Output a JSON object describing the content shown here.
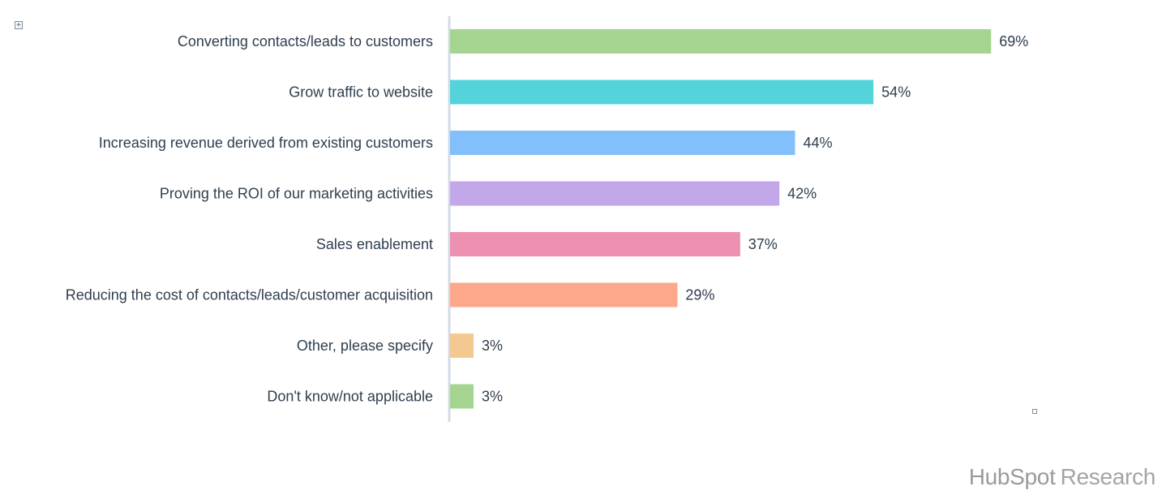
{
  "chart_data": {
    "type": "bar",
    "orientation": "horizontal",
    "categories": [
      "Converting  contacts/leads  to  customers",
      "Grow  traffic to  website",
      "Increasing  revenue  derived  from  existing  customers",
      "Proving  the  ROI  of our marketing  activities",
      "Sales  enablement",
      "Reducing  the  cost of contacts/leads/customer acquisition",
      "Other,  please  specify",
      "Don't  know/not  applicable"
    ],
    "values": [
      69,
      54,
      44,
      42,
      37,
      29,
      3,
      3
    ],
    "value_labels": [
      "69%",
      "54%",
      "44%",
      "42%",
      "37%",
      "29%",
      "3%",
      "3%"
    ],
    "colors": [
      "#a4d490",
      "#54d3db",
      "#81c0fa",
      "#c2a8e8",
      "#ed90b1",
      "#fda78b",
      "#f4c891",
      "#a4d490"
    ],
    "xlim": [
      0,
      100
    ],
    "unit": "%",
    "grid": false,
    "legend": "none"
  },
  "brand": {
    "name": "HubSpot",
    "suffix": "Research"
  },
  "handles": {
    "expand_glyph": "+"
  }
}
